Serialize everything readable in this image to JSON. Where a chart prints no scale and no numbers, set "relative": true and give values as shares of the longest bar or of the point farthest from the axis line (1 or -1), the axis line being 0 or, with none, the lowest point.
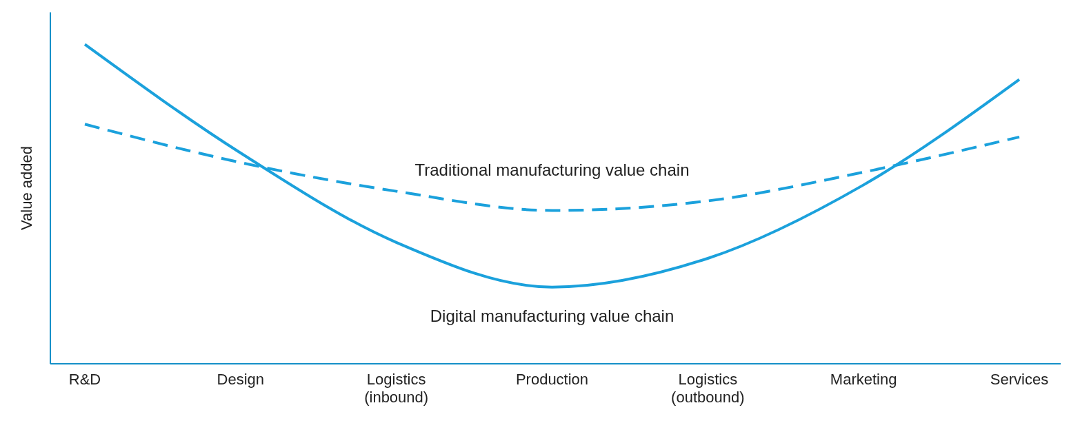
{
  "chart_data": {
    "type": "line",
    "relative": true,
    "ylabel": "Value added",
    "categories": [
      "R&D",
      "Design",
      "Logistics\n(inbound)",
      "Production",
      "Logistics\n(outbound)",
      "Marketing",
      "Services"
    ],
    "series": [
      {
        "name": "Digital manufacturing value chain",
        "color": "#1ba1dc",
        "line_style": "solid",
        "values": [
          1.0,
          0.66,
          0.38,
          0.24,
          0.33,
          0.56,
          0.89
        ]
      },
      {
        "name": "Traditional manufacturing value chain",
        "color": "#1ba1dc",
        "line_style": "dashed",
        "values": [
          0.75,
          0.63,
          0.54,
          0.48,
          0.51,
          0.6,
          0.71
        ]
      }
    ],
    "grid": false,
    "legend": false,
    "marker": "none"
  }
}
